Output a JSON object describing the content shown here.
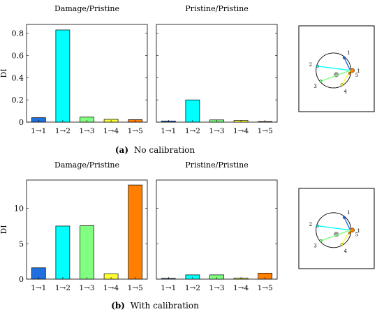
{
  "chart_data": [
    {
      "type": "bar",
      "caption_tag": "(a)",
      "caption_text": "No calibration",
      "ylabel": "DI",
      "yticks": [
        0,
        0.2,
        0.4,
        0.6,
        0.8
      ],
      "ylim": [
        0,
        0.88
      ],
      "categories": [
        "1→1",
        "1→2",
        "1→3",
        "1→4",
        "1→5"
      ],
      "colors": [
        "#1f6fde",
        "#00ffff",
        "#80ff80",
        "#ffff33",
        "#ff8000"
      ],
      "panels": [
        {
          "title": "Damage/Pristine",
          "values": [
            0.04,
            0.83,
            0.045,
            0.025,
            0.022
          ]
        },
        {
          "title": "Pristine/Pristine",
          "values": [
            0.01,
            0.2,
            0.02,
            0.015,
            0.005
          ]
        }
      ]
    },
    {
      "type": "bar",
      "caption_tag": "(b)",
      "caption_text": "With calibration",
      "ylabel": "DI",
      "yticks": [
        0,
        5,
        10
      ],
      "ylim": [
        0,
        14
      ],
      "categories": [
        "1→1",
        "1→2",
        "1→3",
        "1→4",
        "1→5"
      ],
      "colors": [
        "#1f6fde",
        "#00ffff",
        "#80ff80",
        "#ffff33",
        "#ff8000"
      ],
      "panels": [
        {
          "title": "Damage/Pristine",
          "values": [
            1.6,
            7.5,
            7.55,
            0.75,
            13.3
          ]
        },
        {
          "title": "Pristine/Pristine",
          "values": [
            0.1,
            0.6,
            0.6,
            0.15,
            0.85
          ]
        }
      ]
    }
  ],
  "inset": {
    "sensor_labels": [
      "1",
      "2",
      "3",
      "4",
      "5",
      "1"
    ],
    "path_colors": [
      "#1f6fde",
      "#00ffff",
      "#80ff80",
      "#ffff33",
      "#ff8000"
    ]
  }
}
